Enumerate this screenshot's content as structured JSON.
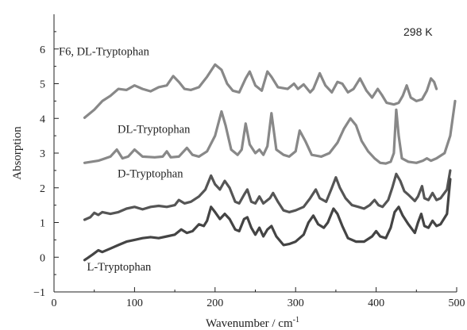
{
  "chart_data": {
    "type": "line",
    "xlabel": "Wavenumber / cm",
    "xlabel_sup": "-1",
    "ylabel": "Absorption",
    "xlim": [
      0,
      500
    ],
    "ylim": [
      -1,
      7
    ],
    "xticks": [
      0,
      100,
      200,
      300,
      400,
      500
    ],
    "yticks": [
      -1,
      0,
      1,
      2,
      3,
      4,
      5,
      6
    ],
    "annotation": "298 K",
    "grid": false,
    "legend": "none",
    "series": [
      {
        "name": "F6, DL-Tryptophan",
        "color": "#888888",
        "label_at": [
          0,
          5.82
        ],
        "points": [
          [
            38,
            4.02
          ],
          [
            50,
            4.25
          ],
          [
            60,
            4.5
          ],
          [
            70,
            4.65
          ],
          [
            80,
            4.85
          ],
          [
            90,
            4.82
          ],
          [
            100,
            4.95
          ],
          [
            110,
            4.85
          ],
          [
            120,
            4.78
          ],
          [
            130,
            4.9
          ],
          [
            140,
            4.95
          ],
          [
            148,
            5.22
          ],
          [
            155,
            5.05
          ],
          [
            162,
            4.85
          ],
          [
            170,
            4.82
          ],
          [
            180,
            4.9
          ],
          [
            190,
            5.2
          ],
          [
            200,
            5.55
          ],
          [
            208,
            5.4
          ],
          [
            215,
            5.0
          ],
          [
            222,
            4.8
          ],
          [
            230,
            4.75
          ],
          [
            238,
            5.15
          ],
          [
            243,
            5.35
          ],
          [
            250,
            4.95
          ],
          [
            258,
            4.8
          ],
          [
            265,
            5.35
          ],
          [
            270,
            5.2
          ],
          [
            278,
            4.9
          ],
          [
            290,
            4.85
          ],
          [
            298,
            5.0
          ],
          [
            303,
            4.85
          ],
          [
            310,
            4.98
          ],
          [
            318,
            4.75
          ],
          [
            322,
            4.85
          ],
          [
            330,
            5.3
          ],
          [
            337,
            4.95
          ],
          [
            345,
            4.75
          ],
          [
            352,
            5.05
          ],
          [
            358,
            5.0
          ],
          [
            365,
            4.75
          ],
          [
            372,
            4.85
          ],
          [
            380,
            5.15
          ],
          [
            388,
            4.8
          ],
          [
            395,
            4.6
          ],
          [
            402,
            4.85
          ],
          [
            407,
            4.68
          ],
          [
            413,
            4.45
          ],
          [
            422,
            4.4
          ],
          [
            428,
            4.45
          ],
          [
            433,
            4.65
          ],
          [
            438,
            4.95
          ],
          [
            443,
            4.6
          ],
          [
            450,
            4.5
          ],
          [
            457,
            4.55
          ],
          [
            463,
            4.8
          ],
          [
            468,
            5.15
          ],
          [
            472,
            5.05
          ],
          [
            475,
            4.85
          ]
        ]
      },
      {
        "name": "DL-Tryptophan",
        "color": "#888888",
        "label_at": [
          73,
          3.58
        ],
        "points": [
          [
            38,
            2.72
          ],
          [
            55,
            2.78
          ],
          [
            70,
            2.9
          ],
          [
            78,
            3.1
          ],
          [
            85,
            2.85
          ],
          [
            92,
            2.9
          ],
          [
            100,
            3.1
          ],
          [
            110,
            2.9
          ],
          [
            125,
            2.88
          ],
          [
            135,
            2.9
          ],
          [
            140,
            3.05
          ],
          [
            145,
            2.88
          ],
          [
            155,
            2.9
          ],
          [
            165,
            3.15
          ],
          [
            172,
            2.95
          ],
          [
            180,
            2.9
          ],
          [
            190,
            3.05
          ],
          [
            200,
            3.5
          ],
          [
            208,
            4.2
          ],
          [
            213,
            3.8
          ],
          [
            220,
            3.1
          ],
          [
            228,
            2.95
          ],
          [
            233,
            3.1
          ],
          [
            238,
            3.85
          ],
          [
            243,
            3.25
          ],
          [
            250,
            3.0
          ],
          [
            255,
            3.1
          ],
          [
            260,
            2.95
          ],
          [
            265,
            3.2
          ],
          [
            270,
            4.15
          ],
          [
            276,
            3.1
          ],
          [
            285,
            2.95
          ],
          [
            292,
            2.9
          ],
          [
            300,
            3.05
          ],
          [
            305,
            3.65
          ],
          [
            312,
            3.35
          ],
          [
            320,
            2.95
          ],
          [
            332,
            2.9
          ],
          [
            342,
            3.0
          ],
          [
            352,
            3.3
          ],
          [
            360,
            3.7
          ],
          [
            368,
            4.0
          ],
          [
            375,
            3.8
          ],
          [
            382,
            3.35
          ],
          [
            390,
            3.05
          ],
          [
            398,
            2.85
          ],
          [
            405,
            2.72
          ],
          [
            412,
            2.7
          ],
          [
            418,
            2.75
          ],
          [
            422,
            3.0
          ],
          [
            425,
            4.25
          ],
          [
            428,
            3.5
          ],
          [
            432,
            2.85
          ],
          [
            440,
            2.75
          ],
          [
            450,
            2.72
          ],
          [
            458,
            2.78
          ],
          [
            463,
            2.85
          ],
          [
            468,
            2.78
          ],
          [
            475,
            2.85
          ],
          [
            485,
            3.0
          ],
          [
            492,
            3.5
          ],
          [
            498,
            4.5
          ]
        ]
      },
      {
        "name": "D-Tryptophan",
        "color": "#555555",
        "label_at": [
          73,
          2.3
        ],
        "points": [
          [
            38,
            1.08
          ],
          [
            45,
            1.15
          ],
          [
            50,
            1.28
          ],
          [
            55,
            1.22
          ],
          [
            60,
            1.3
          ],
          [
            70,
            1.25
          ],
          [
            80,
            1.3
          ],
          [
            90,
            1.4
          ],
          [
            100,
            1.45
          ],
          [
            110,
            1.38
          ],
          [
            120,
            1.45
          ],
          [
            130,
            1.48
          ],
          [
            140,
            1.45
          ],
          [
            150,
            1.5
          ],
          [
            155,
            1.65
          ],
          [
            162,
            1.55
          ],
          [
            170,
            1.6
          ],
          [
            180,
            1.75
          ],
          [
            188,
            1.95
          ],
          [
            195,
            2.35
          ],
          [
            200,
            2.1
          ],
          [
            206,
            1.95
          ],
          [
            212,
            2.2
          ],
          [
            218,
            2.0
          ],
          [
            225,
            1.6
          ],
          [
            230,
            1.55
          ],
          [
            236,
            1.8
          ],
          [
            240,
            1.95
          ],
          [
            245,
            1.6
          ],
          [
            250,
            1.55
          ],
          [
            255,
            1.75
          ],
          [
            260,
            1.55
          ],
          [
            268,
            1.7
          ],
          [
            272,
            1.85
          ],
          [
            278,
            1.6
          ],
          [
            285,
            1.35
          ],
          [
            292,
            1.3
          ],
          [
            300,
            1.35
          ],
          [
            310,
            1.45
          ],
          [
            318,
            1.7
          ],
          [
            325,
            1.95
          ],
          [
            330,
            1.7
          ],
          [
            338,
            1.6
          ],
          [
            345,
            2.0
          ],
          [
            350,
            2.3
          ],
          [
            355,
            2.0
          ],
          [
            362,
            1.7
          ],
          [
            370,
            1.5
          ],
          [
            378,
            1.45
          ],
          [
            385,
            1.4
          ],
          [
            392,
            1.5
          ],
          [
            398,
            1.65
          ],
          [
            403,
            1.5
          ],
          [
            408,
            1.45
          ],
          [
            415,
            1.65
          ],
          [
            420,
            2.0
          ],
          [
            425,
            2.4
          ],
          [
            430,
            2.2
          ],
          [
            435,
            1.9
          ],
          [
            440,
            1.8
          ],
          [
            448,
            1.62
          ],
          [
            452,
            1.75
          ],
          [
            457,
            2.05
          ],
          [
            460,
            1.7
          ],
          [
            465,
            1.65
          ],
          [
            470,
            1.85
          ],
          [
            475,
            1.65
          ],
          [
            480,
            1.7
          ],
          [
            488,
            1.95
          ],
          [
            492,
            2.5
          ]
        ]
      },
      {
        "name": "L-Tryptophan",
        "color": "#444444",
        "label_at": [
          35,
          -0.38
        ],
        "points": [
          [
            38,
            -0.08
          ],
          [
            42,
            -0.02
          ],
          [
            48,
            0.08
          ],
          [
            55,
            0.2
          ],
          [
            60,
            0.15
          ],
          [
            70,
            0.25
          ],
          [
            80,
            0.35
          ],
          [
            90,
            0.45
          ],
          [
            100,
            0.5
          ],
          [
            110,
            0.55
          ],
          [
            120,
            0.58
          ],
          [
            130,
            0.55
          ],
          [
            140,
            0.6
          ],
          [
            150,
            0.65
          ],
          [
            158,
            0.8
          ],
          [
            165,
            0.7
          ],
          [
            172,
            0.75
          ],
          [
            180,
            0.95
          ],
          [
            186,
            0.9
          ],
          [
            190,
            1.05
          ],
          [
            195,
            1.45
          ],
          [
            200,
            1.3
          ],
          [
            206,
            1.1
          ],
          [
            212,
            1.25
          ],
          [
            218,
            1.1
          ],
          [
            225,
            0.8
          ],
          [
            230,
            0.75
          ],
          [
            236,
            1.1
          ],
          [
            240,
            1.15
          ],
          [
            245,
            0.85
          ],
          [
            250,
            0.65
          ],
          [
            255,
            0.85
          ],
          [
            260,
            0.6
          ],
          [
            265,
            0.8
          ],
          [
            270,
            0.9
          ],
          [
            276,
            0.6
          ],
          [
            285,
            0.35
          ],
          [
            292,
            0.38
          ],
          [
            300,
            0.45
          ],
          [
            310,
            0.65
          ],
          [
            316,
            1.0
          ],
          [
            322,
            1.2
          ],
          [
            328,
            0.95
          ],
          [
            335,
            0.85
          ],
          [
            340,
            1.0
          ],
          [
            347,
            1.4
          ],
          [
            352,
            1.25
          ],
          [
            358,
            0.9
          ],
          [
            365,
            0.55
          ],
          [
            375,
            0.45
          ],
          [
            385,
            0.45
          ],
          [
            395,
            0.6
          ],
          [
            400,
            0.75
          ],
          [
            405,
            0.6
          ],
          [
            412,
            0.55
          ],
          [
            418,
            0.85
          ],
          [
            423,
            1.3
          ],
          [
            428,
            1.45
          ],
          [
            433,
            1.2
          ],
          [
            440,
            0.95
          ],
          [
            448,
            0.7
          ],
          [
            452,
            1.0
          ],
          [
            456,
            1.25
          ],
          [
            460,
            0.9
          ],
          [
            465,
            0.85
          ],
          [
            470,
            1.05
          ],
          [
            475,
            0.9
          ],
          [
            480,
            0.95
          ],
          [
            488,
            1.25
          ],
          [
            492,
            2.25
          ]
        ]
      }
    ]
  }
}
